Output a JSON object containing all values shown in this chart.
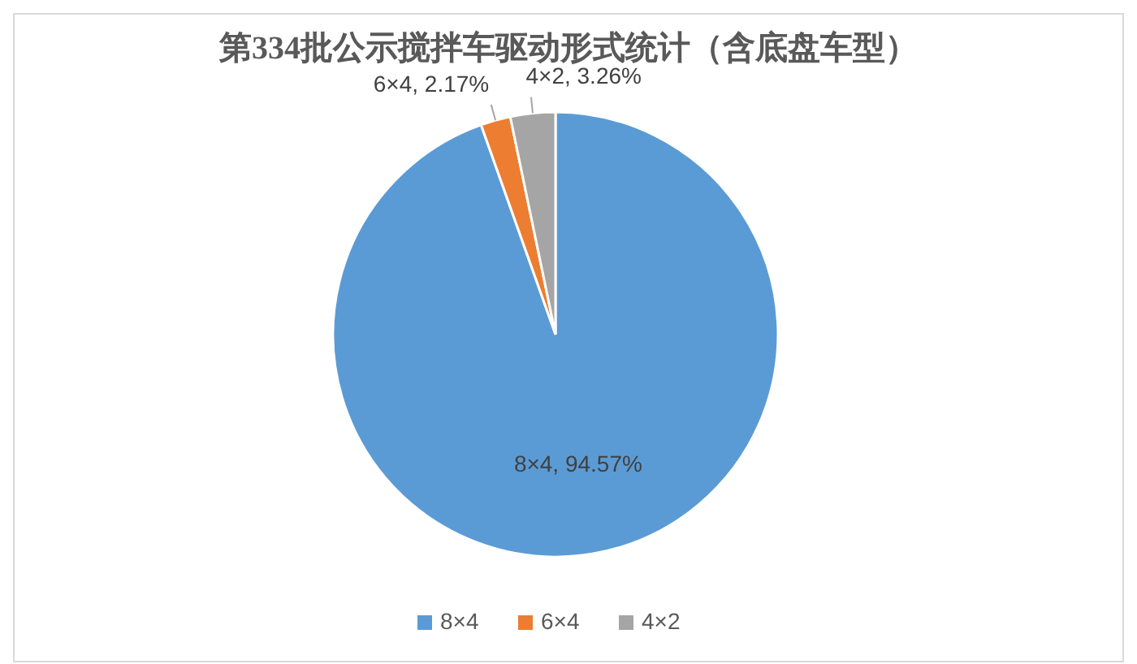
{
  "chart_data": {
    "type": "pie",
    "title": "第334批公示搅拌车驱动形式统计（含底盘车型）",
    "categories": [
      "8×4",
      "6×4",
      "4×2"
    ],
    "values": [
      94.57,
      2.17,
      3.26
    ],
    "colors": [
      "#5b9bd5",
      "#ed7d31",
      "#a5a5a5"
    ],
    "value_labels": [
      "8×4, 94.57%",
      "6×4, 2.17%",
      "4×2, 3.26%"
    ],
    "legend": "bottom"
  }
}
